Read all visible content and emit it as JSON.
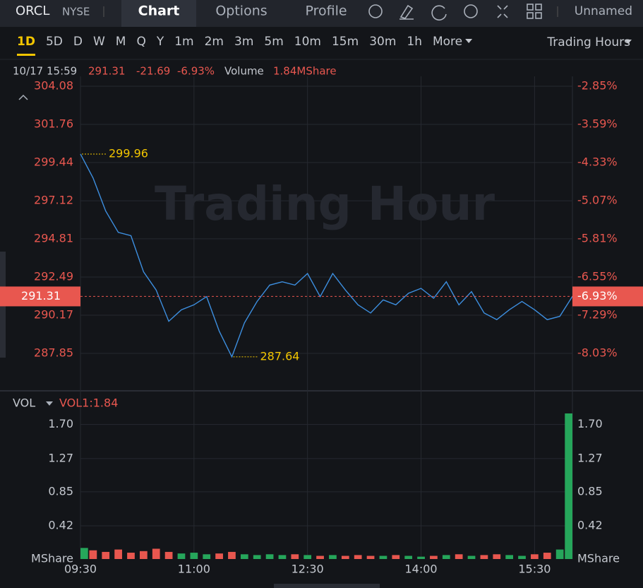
{
  "header": {
    "symbol": "ORCL",
    "exchange": "NYSE",
    "tabs": [
      "Chart",
      "Options",
      "Profile"
    ],
    "layout_name": "Unnamed"
  },
  "periods": [
    "1D",
    "5D",
    "D",
    "W",
    "M",
    "Q",
    "Y",
    "1m",
    "2m",
    "3m",
    "5m",
    "10m",
    "15m",
    "30m",
    "1h",
    "More"
  ],
  "session": "Trading Hours",
  "info": {
    "time": "10/17 15:59",
    "price": "291.31",
    "change": "-21.69",
    "change_pct": "-6.93%",
    "volume_label": "Volume",
    "volume": "1.84MShare"
  },
  "watermark": "Trading Hour",
  "chart_data": [
    {
      "type": "line",
      "color": "#3d8fe0",
      "x": [
        "09:30",
        "09:40",
        "09:50",
        "10:00",
        "10:10",
        "10:20",
        "10:30",
        "10:40",
        "10:50",
        "11:00",
        "11:10",
        "11:20",
        "11:30",
        "11:40",
        "11:50",
        "12:00",
        "12:10",
        "12:20",
        "12:30",
        "12:40",
        "12:50",
        "13:00",
        "13:10",
        "13:20",
        "13:30",
        "13:40",
        "13:50",
        "14:00",
        "14:10",
        "14:20",
        "14:30",
        "14:40",
        "14:50",
        "15:00",
        "15:10",
        "15:20",
        "15:30",
        "15:40",
        "15:50",
        "16:00"
      ],
      "values": [
        299.96,
        298.5,
        296.5,
        295.2,
        295.0,
        292.8,
        291.7,
        289.8,
        290.5,
        290.8,
        291.3,
        289.2,
        287.64,
        289.7,
        291.0,
        292.0,
        292.2,
        292.0,
        292.7,
        291.3,
        292.7,
        291.7,
        290.8,
        290.3,
        291.1,
        290.8,
        291.5,
        291.8,
        291.2,
        292.2,
        290.8,
        291.6,
        290.3,
        289.9,
        290.5,
        291.0,
        290.5,
        289.9,
        290.1,
        291.31
      ],
      "ylim": [
        285.79,
        304.68
      ],
      "yticks": [
        304.08,
        301.76,
        299.44,
        297.12,
        294.81,
        292.49,
        290.17,
        287.85
      ],
      "y2lim": [
        -8.69,
        -2.66
      ],
      "y2ticks": [
        {
          "value": -2.85,
          "label": "-2.85%"
        },
        {
          "value": -3.59,
          "label": "-3.59%"
        },
        {
          "value": -4.33,
          "label": "-4.33%"
        },
        {
          "value": -5.07,
          "label": "-5.07%"
        },
        {
          "value": -5.81,
          "label": "-5.81%"
        },
        {
          "value": -6.55,
          "label": "-6.55%"
        },
        {
          "value": -7.29,
          "label": "-7.29%"
        },
        {
          "value": -8.03,
          "label": "-8.03%"
        }
      ],
      "tick_color": "#e8574f",
      "annotation_color": "#f2c500"
    },
    {
      "type": "bar",
      "label": "VOL",
      "indicator": "VOL1:1.84",
      "unit": "MShare",
      "up_color": "#26a65b",
      "down_color": "#e8574f",
      "values": [
        0.14,
        0.11,
        0.09,
        0.12,
        0.08,
        0.1,
        0.13,
        0.09,
        0.07,
        0.08,
        0.06,
        0.07,
        0.09,
        0.06,
        0.05,
        0.06,
        0.05,
        0.06,
        0.05,
        0.04,
        0.05,
        0.04,
        0.05,
        0.04,
        0.04,
        0.05,
        0.04,
        0.03,
        0.04,
        0.05,
        0.06,
        0.04,
        0.05,
        0.06,
        0.05,
        0.04,
        0.06,
        0.08,
        0.12,
        1.84
      ],
      "ylim": [
        0,
        1.84
      ],
      "yticks": [
        {
          "value": 1.7,
          "label": "1.70"
        },
        1.27,
        0.85,
        0.42
      ],
      "xticks": [
        "09:30",
        "11:00",
        "12:30",
        "14:00",
        "15:30"
      ]
    }
  ]
}
